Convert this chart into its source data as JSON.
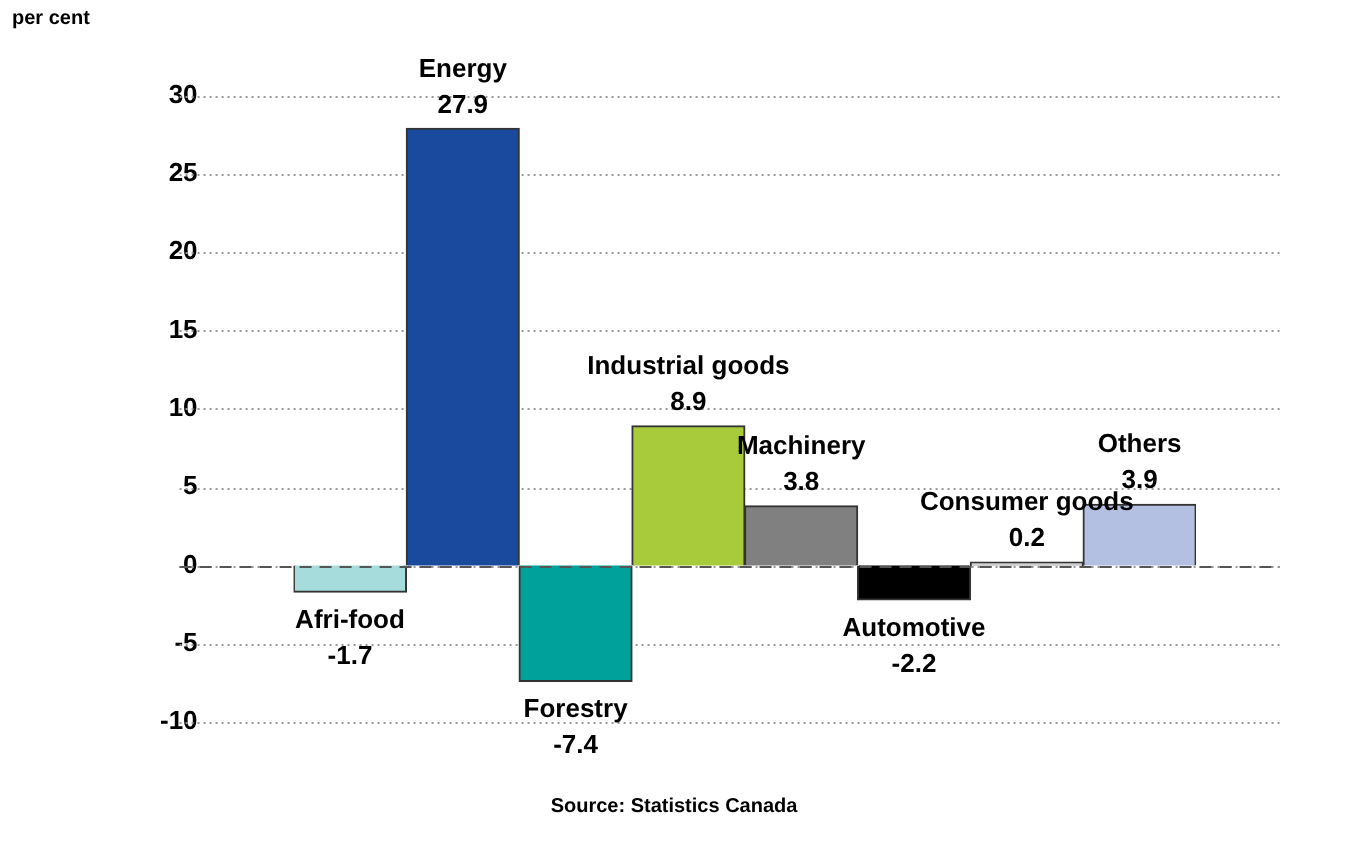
{
  "chart_data": {
    "type": "bar",
    "ylabel": "per cent",
    "categories": [
      "Afri-food",
      "Energy",
      "Forestry",
      "Industrial goods",
      "Machinery",
      "Automotive",
      "Consumer goods",
      "Others"
    ],
    "values": [
      -1.7,
      27.9,
      -7.4,
      8.9,
      3.8,
      -2.2,
      0.2,
      3.9
    ],
    "colors": [
      "#a6dcdc",
      "#1a4a9e",
      "#00a19b",
      "#a8cb3c",
      "#808080",
      "#000000",
      "#d0d0d0",
      "#b4c0e2"
    ],
    "ylim": [
      -10,
      30
    ],
    "yticks": [
      -10,
      -5,
      0,
      5,
      10,
      15,
      20,
      25,
      30
    ],
    "grid": "y",
    "data_labels": true,
    "ref_lines": [
      {
        "axis": "y",
        "value": 0,
        "label": null,
        "color": "#555555",
        "line_style": "dashed"
      }
    ],
    "annotations": [
      "Source: Statistics Canada"
    ]
  }
}
